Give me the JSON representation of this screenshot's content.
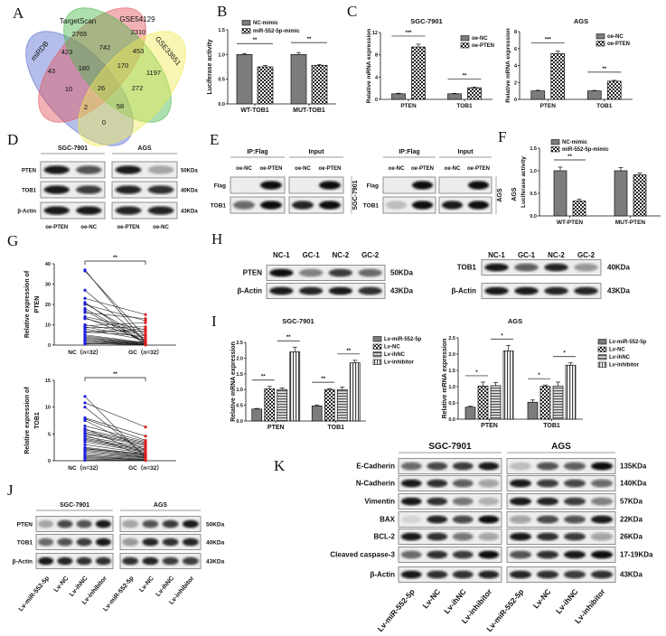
{
  "panel_letters": [
    "A",
    "B",
    "C",
    "D",
    "E",
    "F",
    "G",
    "H",
    "I",
    "J",
    "K"
  ],
  "venn": {
    "sets": [
      {
        "name": "miRDB",
        "color": "#5b6fd0"
      },
      {
        "name": "TargetScan",
        "color": "#e2555c"
      },
      {
        "name": "GSE54129",
        "color": "#4cb84c"
      },
      {
        "name": "GSE33651",
        "color": "#f0ea55"
      }
    ],
    "counts": [
      "2765",
      "2310",
      "423",
      "742",
      "453",
      "43",
      "180",
      "170",
      "1197",
      "10",
      "26",
      "272",
      "2",
      "58",
      "0"
    ]
  },
  "chart_data": [
    {
      "type": "bar",
      "title": "",
      "ylabel": "Luciferase activity",
      "categories": [
        "WT-TOB1",
        "MUT-TOB1"
      ],
      "series": [
        {
          "name": "NC-mimic",
          "values": [
            1.0,
            1.0
          ],
          "errors": [
            0.02,
            0.04
          ],
          "fill": "solid"
        },
        {
          "name": "miR-552-5p-mimic",
          "values": [
            0.75,
            0.78
          ],
          "errors": [
            0.03,
            0.02
          ],
          "fill": "checker"
        }
      ],
      "ylim": [
        0,
        1.5
      ],
      "yticks": [
        "0.0",
        "0.5",
        "1.0",
        "1.5"
      ],
      "significance": [
        {
          "group": 0,
          "pair": [
            0,
            1
          ],
          "label": "**"
        },
        {
          "group": 1,
          "pair": [
            0,
            1
          ],
          "label": "**"
        }
      ],
      "legend": "top"
    },
    {
      "type": "bar",
      "title": "SGC-7901",
      "ylabel": "Relative mRNA expression",
      "categories": [
        "PTEN",
        "TOB1"
      ],
      "series": [
        {
          "name": "oe-NC",
          "values": [
            1.0,
            1.0
          ],
          "errors": [
            0.1,
            0.08
          ],
          "fill": "solid"
        },
        {
          "name": "oe-PTEN",
          "values": [
            9.4,
            2.1
          ],
          "errors": [
            0.5,
            0.1
          ],
          "fill": "checker"
        }
      ],
      "ylim": [
        0,
        12
      ],
      "yticks": [
        "0",
        "4",
        "8",
        "12"
      ],
      "significance": [
        {
          "group": 0,
          "pair": [
            0,
            1
          ],
          "label": "***"
        },
        {
          "group": 1,
          "pair": [
            0,
            1
          ],
          "label": "**"
        }
      ],
      "legend": "top-right"
    },
    {
      "type": "bar",
      "title": "AGS",
      "ylabel": "Relative mRNA expression",
      "categories": [
        "PTEN",
        "TOB1"
      ],
      "series": [
        {
          "name": "oe-NC",
          "values": [
            1.0,
            1.0
          ],
          "errors": [
            0.08,
            0.06
          ],
          "fill": "solid"
        },
        {
          "name": "oe-PTEN",
          "values": [
            5.4,
            2.15
          ],
          "errors": [
            0.3,
            0.1
          ],
          "fill": "checker"
        }
      ],
      "ylim": [
        0,
        8
      ],
      "yticks": [
        "0",
        "2",
        "4",
        "6",
        "8"
      ],
      "significance": [
        {
          "group": 0,
          "pair": [
            0,
            1
          ],
          "label": "***"
        },
        {
          "group": 1,
          "pair": [
            0,
            1
          ],
          "label": "**"
        }
      ],
      "legend": "top-right"
    },
    {
      "type": "bar",
      "title": "",
      "ylabel": "Luciferase activity",
      "side_label": "AGS",
      "categories": [
        "WT-PTEN",
        "MUT-PTEN"
      ],
      "series": [
        {
          "name": "NC-mimic",
          "values": [
            1.0,
            1.0
          ],
          "errors": [
            0.08,
            0.07
          ],
          "fill": "solid"
        },
        {
          "name": "miR-552-5p-mimic",
          "values": [
            0.33,
            0.91
          ],
          "errors": [
            0.04,
            0.04
          ],
          "fill": "checker"
        }
      ],
      "ylim": [
        0,
        1.5
      ],
      "yticks": [
        "0.0",
        "0.5",
        "1.0",
        "1.5"
      ],
      "significance": [
        {
          "group": 0,
          "pair": [
            0,
            1
          ],
          "label": "**"
        }
      ],
      "legend": "top"
    },
    {
      "type": "scatter",
      "subtype": "paired",
      "ylabel": [
        "Relative expression of",
        "PTEN"
      ],
      "categories": [
        "NC（n=32）",
        "GC（n=32）"
      ],
      "ylim": [
        0,
        40
      ],
      "yticks": [
        "0",
        "10",
        "20",
        "30",
        "40"
      ],
      "colors": [
        "#1f1fe0",
        "#e02020"
      ],
      "NC": [
        37,
        36.5,
        27,
        23,
        21,
        20.5,
        20,
        18,
        17,
        16,
        14,
        13.5,
        13,
        10,
        9.5,
        9,
        8.5,
        8,
        7,
        6.5,
        6,
        5,
        4.5,
        4,
        3.5,
        3,
        2.5,
        2,
        1.5,
        1,
        0.8,
        0.5
      ],
      "GC": [
        1,
        4,
        2,
        15,
        0.5,
        3,
        12,
        1.5,
        0.8,
        13,
        7.5,
        2,
        6,
        5,
        11,
        3.5,
        9,
        2.5,
        7,
        4.5,
        8,
        1.2,
        1,
        0.7,
        0.6,
        0.4,
        0.3,
        0.3,
        0.2,
        0.1,
        0.1,
        1.8
      ],
      "significance": "**"
    },
    {
      "type": "scatter",
      "subtype": "paired",
      "ylabel": [
        "Relative expression of",
        "TOB1"
      ],
      "categories": [
        "NC（n=32）",
        "GC（n=32）"
      ],
      "ylim": [
        0,
        15
      ],
      "yticks": [
        "0",
        "5",
        "10",
        "15"
      ],
      "colors": [
        "#1f1fe0",
        "#e02020"
      ],
      "NC": [
        12,
        10.8,
        10,
        8,
        7.8,
        7.5,
        6.5,
        6,
        5.8,
        5.5,
        5.2,
        5,
        4.8,
        4.5,
        4.2,
        4,
        3.8,
        3.5,
        3,
        2.5,
        2.3,
        2.2,
        2,
        1.8,
        1.5,
        1.2,
        1,
        0.8,
        0.6,
        0.4,
        0.2,
        0.1
      ],
      "GC": [
        0.5,
        6.3,
        1,
        4.6,
        3.8,
        2,
        3.6,
        1.2,
        3.4,
        3.2,
        3,
        2.8,
        0.9,
        2.5,
        2.2,
        2,
        1.8,
        1.6,
        1.4,
        1.2,
        1.1,
        1,
        0.8,
        0.7,
        0.6,
        0.5,
        0.3,
        0.2,
        0.2,
        0.1,
        0.1,
        0.05
      ],
      "significance": "**"
    },
    {
      "type": "bar",
      "title": "SGC-7901",
      "ylabel": "Relative mRNA expression",
      "categories": [
        "PTEN",
        "TOB1"
      ],
      "series": [
        {
          "name": "Lv-miR-552-5p",
          "values": [
            0.38,
            0.48
          ],
          "errors": [
            0.02,
            0.03
          ],
          "fill": "solid"
        },
        {
          "name": "Lv-NC",
          "values": [
            1.02,
            1.0
          ],
          "errors": [
            0.08,
            0.03
          ],
          "fill": "checker"
        },
        {
          "name": "Lv-ihNC",
          "values": [
            1.0,
            1.0
          ],
          "errors": [
            0.05,
            0.08
          ],
          "fill": "hstripe"
        },
        {
          "name": "Lv-inhibitor",
          "values": [
            2.2,
            1.85
          ],
          "errors": [
            0.15,
            0.08
          ],
          "fill": "vstripe"
        }
      ],
      "ylim": [
        0,
        2.5
      ],
      "yticks": [
        "0.0",
        "0.5",
        "1.0",
        "1.5",
        "2.0",
        "2.5"
      ],
      "significance": [
        {
          "group": 0,
          "pair": [
            0,
            1
          ],
          "label": "**"
        },
        {
          "group": 0,
          "pair": [
            2,
            3
          ],
          "label": "**"
        },
        {
          "group": 1,
          "pair": [
            0,
            1
          ],
          "label": "**"
        },
        {
          "group": 1,
          "pair": [
            2,
            3
          ],
          "label": "**"
        }
      ],
      "legend": "right"
    },
    {
      "type": "bar",
      "title": "AGS",
      "ylabel": "Relative mRNA expression",
      "categories": [
        "PTEN",
        "TOB1"
      ],
      "series": [
        {
          "name": "Lv-miR-552-5p",
          "values": [
            0.37,
            0.52
          ],
          "errors": [
            0.03,
            0.07
          ],
          "fill": "solid"
        },
        {
          "name": "Lv-NC",
          "values": [
            1.02,
            1.01
          ],
          "errors": [
            0.12,
            0.04
          ],
          "fill": "checker"
        },
        {
          "name": "Lv-ihNC",
          "values": [
            1.03,
            1.02
          ],
          "errors": [
            0.1,
            0.12
          ],
          "fill": "hstripe"
        },
        {
          "name": "Lv-inhibitor",
          "values": [
            2.1,
            1.66
          ],
          "errors": [
            0.17,
            0.07
          ],
          "fill": "vstripe"
        }
      ],
      "ylim": [
        0,
        2.5
      ],
      "yticks": [
        "0.0",
        "0.5",
        "1.0",
        "1.5",
        "2.0",
        "2.5"
      ],
      "significance": [
        {
          "group": 0,
          "pair": [
            0,
            1
          ],
          "label": "*"
        },
        {
          "group": 0,
          "pair": [
            2,
            3
          ],
          "label": "*"
        },
        {
          "group": 1,
          "pair": [
            0,
            1
          ],
          "label": "*"
        },
        {
          "group": 1,
          "pair": [
            2,
            3
          ],
          "label": "*"
        }
      ],
      "legend": "right"
    }
  ],
  "blots": [
    {
      "headers": [
        "SGC-7901",
        "AGS"
      ],
      "lanes_bottom": [
        [
          "oe-PTEN",
          "oe-NC"
        ],
        [
          "oe-PTEN",
          "oe-NC"
        ]
      ],
      "rows": [
        {
          "label": "PTEN",
          "marker": "50KDa",
          "band_intensity": [
            [
              0.95,
              0.7
            ],
            [
              0.95,
              0.3
            ]
          ]
        },
        {
          "label": "TOB1",
          "marker": "40KDa",
          "band_intensity": [
            [
              0.95,
              0.8
            ],
            [
              0.9,
              0.85
            ]
          ]
        },
        {
          "label": "β-Actin",
          "marker": "43KDa",
          "band_intensity": [
            [
              0.95,
              0.95
            ],
            [
              0.9,
              0.9
            ]
          ]
        }
      ]
    },
    {
      "headers": [
        "IP:Flag",
        "Input"
      ],
      "side": "SGC-7901",
      "lanes_top": [
        [
          "oe-NC",
          "oe-PTEN"
        ],
        [
          "oe-NC",
          "oe-PTEN"
        ]
      ],
      "rows": [
        {
          "label": "Flag",
          "band_intensity": [
            [
              0,
              1
            ],
            [
              0,
              1
            ]
          ]
        },
        {
          "label": "TOB1",
          "band_intensity": [
            [
              0.6,
              1
            ],
            [
              0.9,
              1
            ]
          ]
        }
      ]
    },
    {
      "headers": [
        "IP:Flag",
        "Input"
      ],
      "side": "AGS",
      "lanes_top": [
        [
          "oe-NC",
          "oe-PTEN"
        ],
        [
          "oe-NC",
          "oe-PTEN"
        ]
      ],
      "rows": [
        {
          "label": "Flag",
          "band_intensity": [
            [
              0,
              1
            ],
            [
              0,
              1
            ]
          ]
        },
        {
          "label": "TOB1",
          "band_intensity": [
            [
              0.2,
              1
            ],
            [
              0.95,
              1
            ]
          ]
        }
      ]
    },
    {
      "lanes_top": [
        [
          "NC-1",
          "GC-1",
          "NC-2",
          "GC-2"
        ]
      ],
      "rows": [
        {
          "label": "PTEN",
          "marker": "50KDa",
          "band_intensity": [
            [
              1,
              0.5,
              0.8,
              0.6
            ]
          ]
        },
        {
          "label": "β-Actin",
          "marker": "43KDa",
          "band_intensity": [
            [
              0.95,
              0.9,
              0.95,
              0.85
            ]
          ]
        }
      ]
    },
    {
      "lanes_top": [
        [
          "NC-1",
          "GC-1",
          "NC-2",
          "GC-2"
        ]
      ],
      "rows": [
        {
          "label": "TOB1",
          "marker": "40KDa",
          "band_intensity": [
            [
              0.95,
              0.65,
              0.9,
              0.4
            ]
          ]
        },
        {
          "label": "β-Actin",
          "marker": "43KDa",
          "band_intensity": [
            [
              0.95,
              0.95,
              0.9,
              0.9
            ]
          ]
        }
      ]
    },
    {
      "headers": [
        "SGC-7901",
        "AGS"
      ],
      "lanes_bottom": [
        [
          "Lv-miR-552-5p",
          "Lv-NC",
          "Lv-ihNC",
          "Lv-inhibitor"
        ],
        [
          "Lv-miR-552-5p",
          "Lv-NC",
          "Lv-ihNC",
          "Lv-inhibitor"
        ]
      ],
      "rows": [
        {
          "label": "PTEN",
          "marker": "50KDa",
          "band_intensity": [
            [
              0.3,
              0.75,
              0.7,
              0.95
            ],
            [
              0.35,
              0.7,
              0.8,
              0.95
            ]
          ]
        },
        {
          "label": "TOB1",
          "marker": "40KDa",
          "band_intensity": [
            [
              0.6,
              0.7,
              0.8,
              0.95
            ],
            [
              0.4,
              0.9,
              0.85,
              0.9
            ]
          ]
        },
        {
          "label": "β-Actin",
          "marker": "43KDa",
          "band_intensity": [
            [
              0.95,
              0.9,
              0.85,
              0.85
            ],
            [
              0.85,
              0.9,
              0.8,
              0.8
            ]
          ]
        }
      ]
    },
    {
      "headers": [
        "SGC-7901",
        "AGS"
      ],
      "lanes_bottom": [
        [
          "Lv-miR-552-5p",
          "Lv-NC",
          "Lv-ihNC",
          "Lv-inhibitor"
        ],
        [
          "Lv-miR-552-5p",
          "Lv-NC",
          "Lv-ihNC",
          "Lv-inhibitor"
        ]
      ],
      "rows": [
        {
          "label": "E-Cadherin",
          "marker": "135KDa",
          "band_intensity": [
            [
              0.6,
              0.75,
              0.8,
              0.95
            ],
            [
              0.2,
              0.7,
              0.65,
              1
            ]
          ]
        },
        {
          "label": "N-Cadherin",
          "marker": "140KDa",
          "band_intensity": [
            [
              0.95,
              0.85,
              0.65,
              0.35
            ],
            [
              0.95,
              0.8,
              0.75,
              0.6
            ]
          ]
        },
        {
          "label": "Vimentin",
          "marker": "57KDa",
          "band_intensity": [
            [
              0.95,
              0.85,
              0.55,
              0.25
            ],
            [
              0.95,
              0.9,
              0.8,
              0.5
            ]
          ]
        },
        {
          "label": "BAX",
          "marker": "22KDa",
          "band_intensity": [
            [
              0.1,
              0.9,
              0.75,
              1
            ],
            [
              0.35,
              0.75,
              0.7,
              0.95
            ]
          ]
        },
        {
          "label": "BCL-2",
          "marker": "26KDa",
          "band_intensity": [
            [
              0.95,
              0.85,
              0.55,
              0.3
            ],
            [
              0.95,
              0.85,
              0.8,
              0.35
            ]
          ]
        },
        {
          "label": "Cleaved caspase-3",
          "marker": "17-19KDa",
          "band_intensity": [
            [
              0.6,
              0.85,
              0.8,
              1
            ],
            [
              0.7,
              0.85,
              0.95,
              1
            ]
          ]
        },
        {
          "label": "β-Actin",
          "marker": "43KDa",
          "band_intensity": [
            [
              0.95,
              0.85,
              0.85,
              0.9
            ],
            [
              0.9,
              0.85,
              0.8,
              0.85
            ]
          ]
        }
      ]
    }
  ]
}
